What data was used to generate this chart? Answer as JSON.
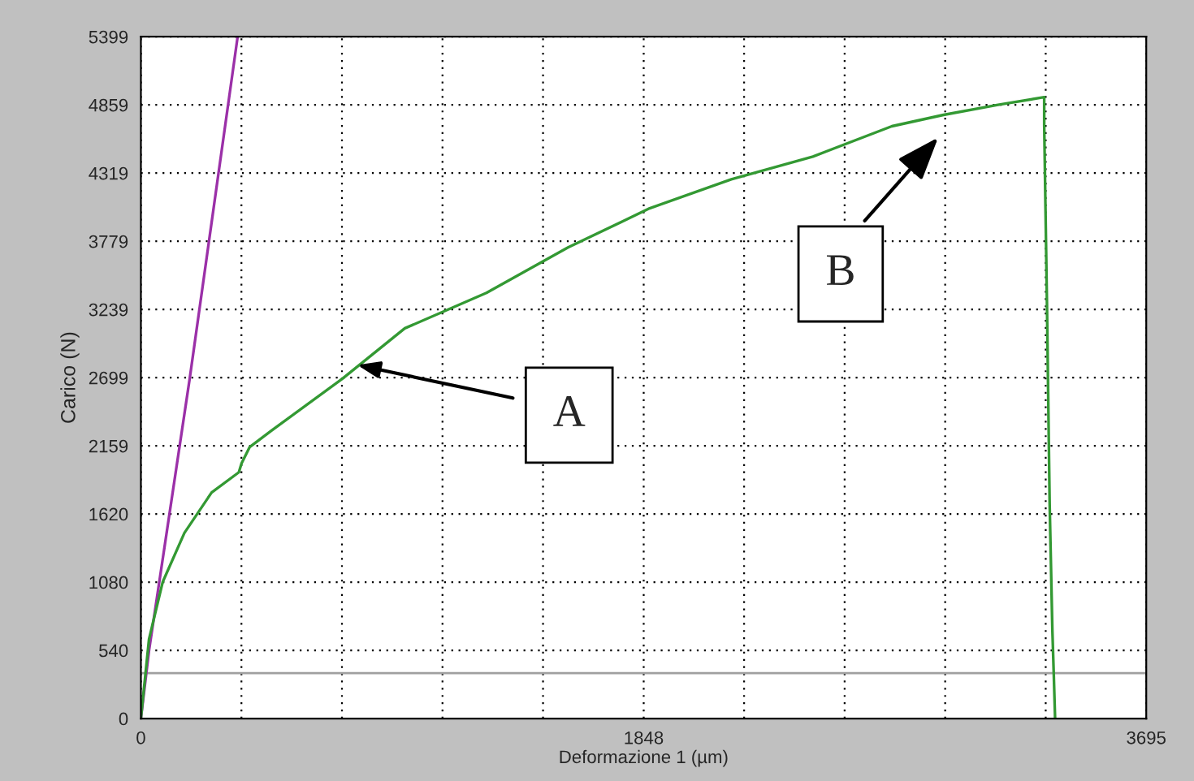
{
  "chart_data": {
    "type": "line",
    "xlabel": "Deformazione 1 (µm)",
    "ylabel": "Carico (N)",
    "xlim": [
      0,
      3695
    ],
    "ylim": [
      0,
      5399
    ],
    "xticks": [
      0,
      {
        "value": 369.5,
        "label": null
      },
      {
        "value": 739,
        "label": null
      },
      {
        "value": 1108.5,
        "label": null
      },
      {
        "value": 1478,
        "label": null
      },
      1848,
      {
        "value": 2217,
        "label": null
      },
      {
        "value": 2586.5,
        "label": null
      },
      {
        "value": 2956,
        "label": null
      },
      {
        "value": 3325.5,
        "label": null
      },
      3695
    ],
    "yticks": [
      0,
      540,
      1080,
      1620,
      2159,
      2699,
      3239,
      3779,
      4319,
      4859,
      5399
    ],
    "grid": true,
    "marker": "none",
    "line_style": "solid",
    "series": [
      {
        "color": "#9b30a8",
        "x": [
          0,
          30,
          180,
          355
        ],
        "values": [
          0,
          540,
          2700,
          5390
        ]
      },
      {
        "color": "#339933",
        "x": [
          0,
          30,
          80,
          160,
          260,
          360,
          370,
          400,
          480,
          740,
          970,
          1270,
          1570,
          1870,
          2170,
          2470,
          2760,
          2950,
          3150,
          3320,
          3320,
          3330,
          3340,
          3350,
          3355,
          3360
        ],
        "values": [
          0,
          630,
          1080,
          1470,
          1790,
          1950,
          2020,
          2150,
          2280,
          2690,
          3090,
          3370,
          3730,
          4040,
          4270,
          4450,
          4690,
          4780,
          4860,
          4920,
          4700,
          3300,
          1700,
          700,
          360,
          0
        ]
      }
    ],
    "ref_lines": [
      {
        "axis": "y",
        "value": 360,
        "color": "#a0a0a0"
      }
    ],
    "annotations": [
      {
        "text": "A",
        "x": 795,
        "y": 2800
      },
      "B"
    ]
  }
}
